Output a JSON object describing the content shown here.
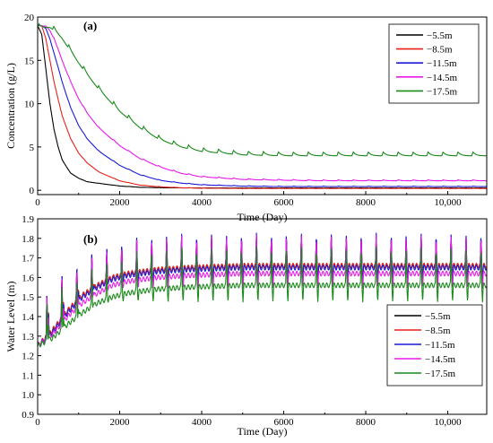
{
  "chart_data": [
    {
      "type": "line",
      "panel_label": "(a)",
      "xlabel": "Time (Day)",
      "ylabel": "Concentration (g/L)",
      "xlim": [
        0,
        10950
      ],
      "ylim": [
        -0.5,
        20
      ],
      "xticks": [
        0,
        2000,
        4000,
        6000,
        8000,
        10000
      ],
      "xtick_labels": [
        "0",
        "2000",
        "4000",
        "6000",
        "8000",
        "10,000"
      ],
      "yticks": [
        0,
        5,
        10,
        15,
        20
      ],
      "ytick_labels": [
        "0",
        "5",
        "10",
        "15",
        "20"
      ],
      "legend_position": "top-right",
      "grid": false,
      "x": [
        0,
        100,
        200,
        300,
        400,
        500,
        600,
        800,
        1000,
        1200,
        1500,
        2000,
        2500,
        3000,
        3500,
        4000,
        5000,
        6000,
        7000,
        8000,
        9000,
        10000,
        10950
      ],
      "series": [
        {
          "name": "−5.5m",
          "color": "#000000",
          "values": [
            19.0,
            18.0,
            14.0,
            10.0,
            7.0,
            5.0,
            3.5,
            2.0,
            1.4,
            1.0,
            0.8,
            0.5,
            0.35,
            0.3,
            0.28,
            0.27,
            0.27,
            0.27,
            0.27,
            0.27,
            0.27,
            0.27,
            0.27
          ]
        },
        {
          "name": "−8.5m",
          "color": "#e8201a",
          "values": [
            19.0,
            19.0,
            17.5,
            15.0,
            12.5,
            10.5,
            8.6,
            6.0,
            4.3,
            3.2,
            2.1,
            1.1,
            0.6,
            0.4,
            0.3,
            0.25,
            0.22,
            0.22,
            0.22,
            0.22,
            0.22,
            0.22,
            0.22
          ]
        },
        {
          "name": "−11.5m",
          "color": "#1a1ad8",
          "values": [
            19.0,
            19.0,
            18.7,
            17.5,
            15.8,
            14.2,
            12.5,
            9.6,
            7.5,
            6.0,
            4.5,
            2.9,
            1.8,
            1.15,
            0.85,
            0.65,
            0.5,
            0.45,
            0.45,
            0.45,
            0.45,
            0.45,
            0.45
          ]
        },
        {
          "name": "−14.5m",
          "color": "#e81ae8",
          "values": [
            19.0,
            19.0,
            19.0,
            18.5,
            17.5,
            16.3,
            15.0,
            12.6,
            10.6,
            9.0,
            7.2,
            5.2,
            3.7,
            2.7,
            2.0,
            1.6,
            1.3,
            1.2,
            1.15,
            1.15,
            1.15,
            1.15,
            1.15
          ]
        },
        {
          "name": "−17.5m",
          "color": "#1a8a1a",
          "values": [
            19.0,
            19.0,
            19.0,
            19.0,
            18.7,
            18.2,
            17.7,
            16.3,
            14.9,
            13.6,
            11.8,
            9.3,
            7.4,
            6.0,
            5.2,
            4.7,
            4.3,
            4.2,
            4.2,
            4.2,
            4.2,
            4.2,
            4.2
          ]
        }
      ],
      "seasonal_oscillation_period_days": 365,
      "seasonal_oscillation_amplitude": [
        0.02,
        0.03,
        0.06,
        0.12,
        0.45
      ]
    },
    {
      "type": "line",
      "panel_label": "(b)",
      "xlabel": "Time (Day)",
      "ylabel": "Water Level (m)",
      "xlim": [
        0,
        10950
      ],
      "ylim": [
        0.9,
        1.9
      ],
      "xticks": [
        0,
        2000,
        4000,
        6000,
        8000,
        10000
      ],
      "xtick_labels": [
        "0",
        "2000",
        "4000",
        "6000",
        "8000",
        "10,000"
      ],
      "yticks": [
        0.9,
        1.0,
        1.1,
        1.2,
        1.3,
        1.4,
        1.5,
        1.6,
        1.7,
        1.8,
        1.9
      ],
      "ytick_labels": [
        "0.9",
        "1.0",
        "1.1",
        "1.2",
        "1.3",
        "1.4",
        "1.5",
        "1.6",
        "1.7",
        "1.8",
        "1.9"
      ],
      "legend_position": "middle-right",
      "grid": false,
      "x": [
        0,
        365,
        730,
        1095,
        1460,
        1825,
        2190,
        2920,
        3650,
        5000,
        7000,
        9000,
        10950
      ],
      "series": [
        {
          "name": "−5.5m",
          "color": "#000000",
          "values": [
            1.25,
            1.33,
            1.43,
            1.51,
            1.56,
            1.6,
            1.62,
            1.64,
            1.65,
            1.66,
            1.66,
            1.66,
            1.66
          ]
        },
        {
          "name": "−8.5m",
          "color": "#e8201a",
          "values": [
            1.25,
            1.33,
            1.43,
            1.51,
            1.56,
            1.6,
            1.62,
            1.64,
            1.65,
            1.66,
            1.66,
            1.66,
            1.66
          ]
        },
        {
          "name": "−11.5m",
          "color": "#1a1ad8",
          "values": [
            1.25,
            1.32,
            1.42,
            1.5,
            1.55,
            1.59,
            1.61,
            1.63,
            1.64,
            1.65,
            1.65,
            1.65,
            1.65
          ]
        },
        {
          "name": "−14.5m",
          "color": "#e81ae8",
          "values": [
            1.25,
            1.31,
            1.4,
            1.47,
            1.52,
            1.56,
            1.58,
            1.6,
            1.61,
            1.62,
            1.62,
            1.62,
            1.62
          ]
        },
        {
          "name": "−17.5m",
          "color": "#1a8a1a",
          "values": [
            1.25,
            1.29,
            1.36,
            1.42,
            1.47,
            1.5,
            1.52,
            1.54,
            1.55,
            1.56,
            1.56,
            1.56,
            1.56
          ]
        }
      ],
      "seasonal_peak_levels": [
        1.82,
        1.82,
        1.83,
        1.82,
        1.76
      ],
      "seasonal_trough_levels": [
        1.59,
        1.59,
        1.58,
        1.55,
        1.48
      ],
      "seasonal_oscillation_period_days": 365
    }
  ]
}
